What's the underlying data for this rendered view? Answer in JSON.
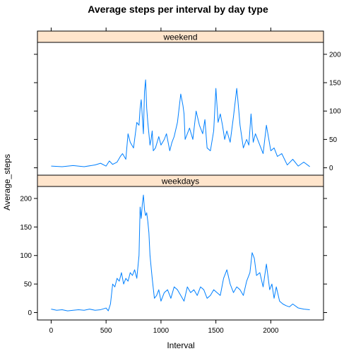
{
  "chart_data": {
    "type": "line",
    "title": "Average steps per interval by day type",
    "xlabel": "Interval",
    "ylabel": "Average_steps",
    "xlim": [
      -125,
      2480
    ],
    "ylim": [
      -13,
      221
    ],
    "x_ticks": [
      0,
      500,
      1000,
      1500,
      2000
    ],
    "x_tick_labels": [
      "0",
      "500",
      "1000",
      "1500",
      "2000"
    ],
    "y_ticks": [
      0,
      50,
      100,
      150,
      200
    ],
    "y_tick_labels": [
      "0",
      "50",
      "100",
      "150",
      "200"
    ],
    "grid": false,
    "color": "#0080ff",
    "strip_color": "#ffe5cc",
    "panels": [
      {
        "name": "weekend",
        "x": [
          0,
          100,
          200,
          300,
          400,
          450,
          500,
          530,
          560,
          600,
          630,
          650,
          680,
          700,
          720,
          750,
          780,
          800,
          810,
          820,
          830,
          840,
          850,
          860,
          870,
          880,
          890,
          900,
          910,
          920,
          930,
          950,
          980,
          1000,
          1030,
          1050,
          1080,
          1100,
          1120,
          1150,
          1180,
          1200,
          1210,
          1220,
          1240,
          1260,
          1290,
          1320,
          1350,
          1380,
          1400,
          1420,
          1450,
          1480,
          1500,
          1520,
          1540,
          1560,
          1580,
          1600,
          1630,
          1660,
          1690,
          1700,
          1720,
          1750,
          1780,
          1800,
          1820,
          1840,
          1860,
          1900,
          1930,
          1960,
          2000,
          2030,
          2060,
          2100,
          2150,
          2200,
          2250,
          2300,
          2355
        ],
        "y": [
          3,
          2,
          4,
          2,
          5,
          8,
          3,
          12,
          6,
          10,
          20,
          25,
          15,
          60,
          45,
          35,
          80,
          75,
          105,
          120,
          90,
          60,
          135,
          155,
          105,
          80,
          60,
          40,
          50,
          65,
          30,
          35,
          55,
          40,
          50,
          60,
          30,
          45,
          55,
          80,
          130,
          110,
          95,
          50,
          60,
          70,
          50,
          100,
          75,
          60,
          85,
          35,
          30,
          65,
          140,
          80,
          95,
          75,
          50,
          65,
          45,
          90,
          140,
          120,
          75,
          35,
          50,
          40,
          95,
          45,
          60,
          40,
          25,
          75,
          30,
          35,
          20,
          25,
          5,
          15,
          3,
          10,
          2
        ]
      },
      {
        "name": "weekdays",
        "x": [
          0,
          50,
          100,
          150,
          200,
          250,
          300,
          350,
          400,
          450,
          500,
          520,
          540,
          560,
          580,
          600,
          620,
          640,
          660,
          680,
          700,
          720,
          740,
          760,
          780,
          800,
          810,
          820,
          830,
          840,
          850,
          860,
          870,
          880,
          890,
          900,
          920,
          940,
          960,
          980,
          1000,
          1030,
          1060,
          1090,
          1120,
          1150,
          1180,
          1210,
          1240,
          1270,
          1300,
          1330,
          1360,
          1390,
          1420,
          1450,
          1480,
          1510,
          1540,
          1570,
          1600,
          1630,
          1660,
          1690,
          1720,
          1750,
          1780,
          1810,
          1830,
          1850,
          1870,
          1900,
          1930,
          1960,
          1990,
          2010,
          2030,
          2050,
          2080,
          2110,
          2140,
          2170,
          2200,
          2250,
          2300,
          2355
        ],
        "y": [
          6,
          4,
          5,
          3,
          4,
          5,
          4,
          6,
          4,
          5,
          8,
          3,
          15,
          50,
          45,
          60,
          55,
          70,
          50,
          60,
          55,
          70,
          65,
          75,
          60,
          100,
          185,
          165,
          190,
          206,
          180,
          170,
          175,
          160,
          140,
          100,
          60,
          25,
          30,
          40,
          20,
          35,
          40,
          25,
          45,
          40,
          30,
          20,
          45,
          35,
          40,
          30,
          45,
          40,
          25,
          30,
          40,
          35,
          30,
          60,
          75,
          50,
          35,
          45,
          40,
          30,
          55,
          70,
          105,
          95,
          65,
          70,
          45,
          85,
          40,
          50,
          25,
          45,
          20,
          15,
          12,
          10,
          15,
          8,
          6,
          5
        ]
      }
    ]
  }
}
